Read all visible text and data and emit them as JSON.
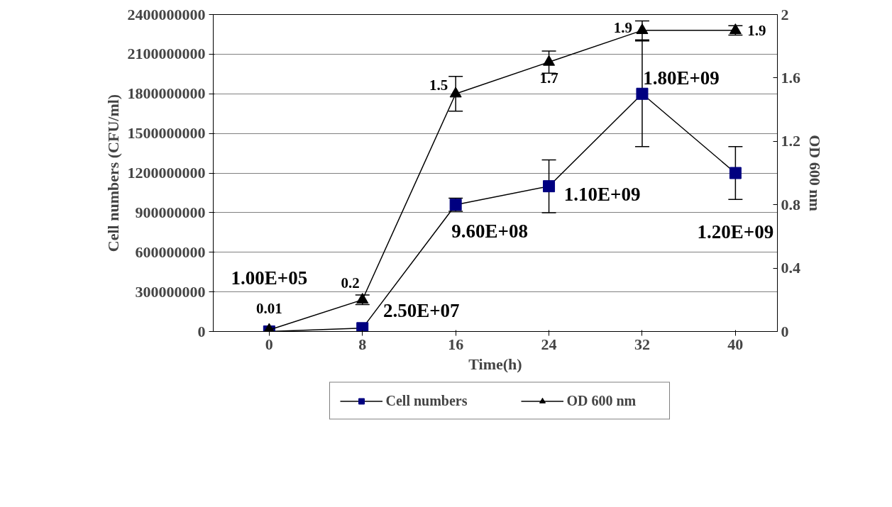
{
  "chart_data": {
    "type": "line",
    "xlabel": "Time(h)",
    "ylabel": "Cell numbers (CFU/ml)",
    "y2label": "OD 600 nm",
    "categories": [
      "0",
      "8",
      "16",
      "24",
      "32",
      "40"
    ],
    "ylim": [
      0,
      2400000000
    ],
    "yticks": [
      0,
      300000000,
      600000000,
      900000000,
      1200000000,
      1500000000,
      1800000000,
      2100000000,
      2400000000
    ],
    "y2lim": [
      0,
      2
    ],
    "y2ticks": [
      0,
      0.4,
      0.8,
      1.2,
      1.6,
      2
    ],
    "grid": "y",
    "legend": "bottom",
    "series": [
      {
        "name": "Cell numbers",
        "color": "#000080",
        "marker": "square",
        "values": [
          100000,
          25000000,
          960000000,
          1100000000,
          1800000000,
          1200000000
        ],
        "errors": [
          null,
          null,
          50000000,
          200000000,
          400000000,
          200000000
        ],
        "value_labels": [
          "1.00E+05",
          "2.50E+07",
          "9.60E+08",
          "1.10E+09",
          "1.80E+09",
          "1.20E+09"
        ]
      },
      {
        "name": "OD 600 nm",
        "color": "#000000",
        "marker": "triangle",
        "axis": "y2",
        "values": [
          0.01,
          0.2,
          1.5,
          1.7,
          1.9,
          1.9
        ],
        "errors": [
          null,
          0.03,
          0.11,
          0.07,
          0.06,
          0.03
        ],
        "value_labels": [
          "0.01",
          "0.2",
          "1.5",
          "1.7",
          "1.9",
          "1.9"
        ]
      }
    ]
  }
}
